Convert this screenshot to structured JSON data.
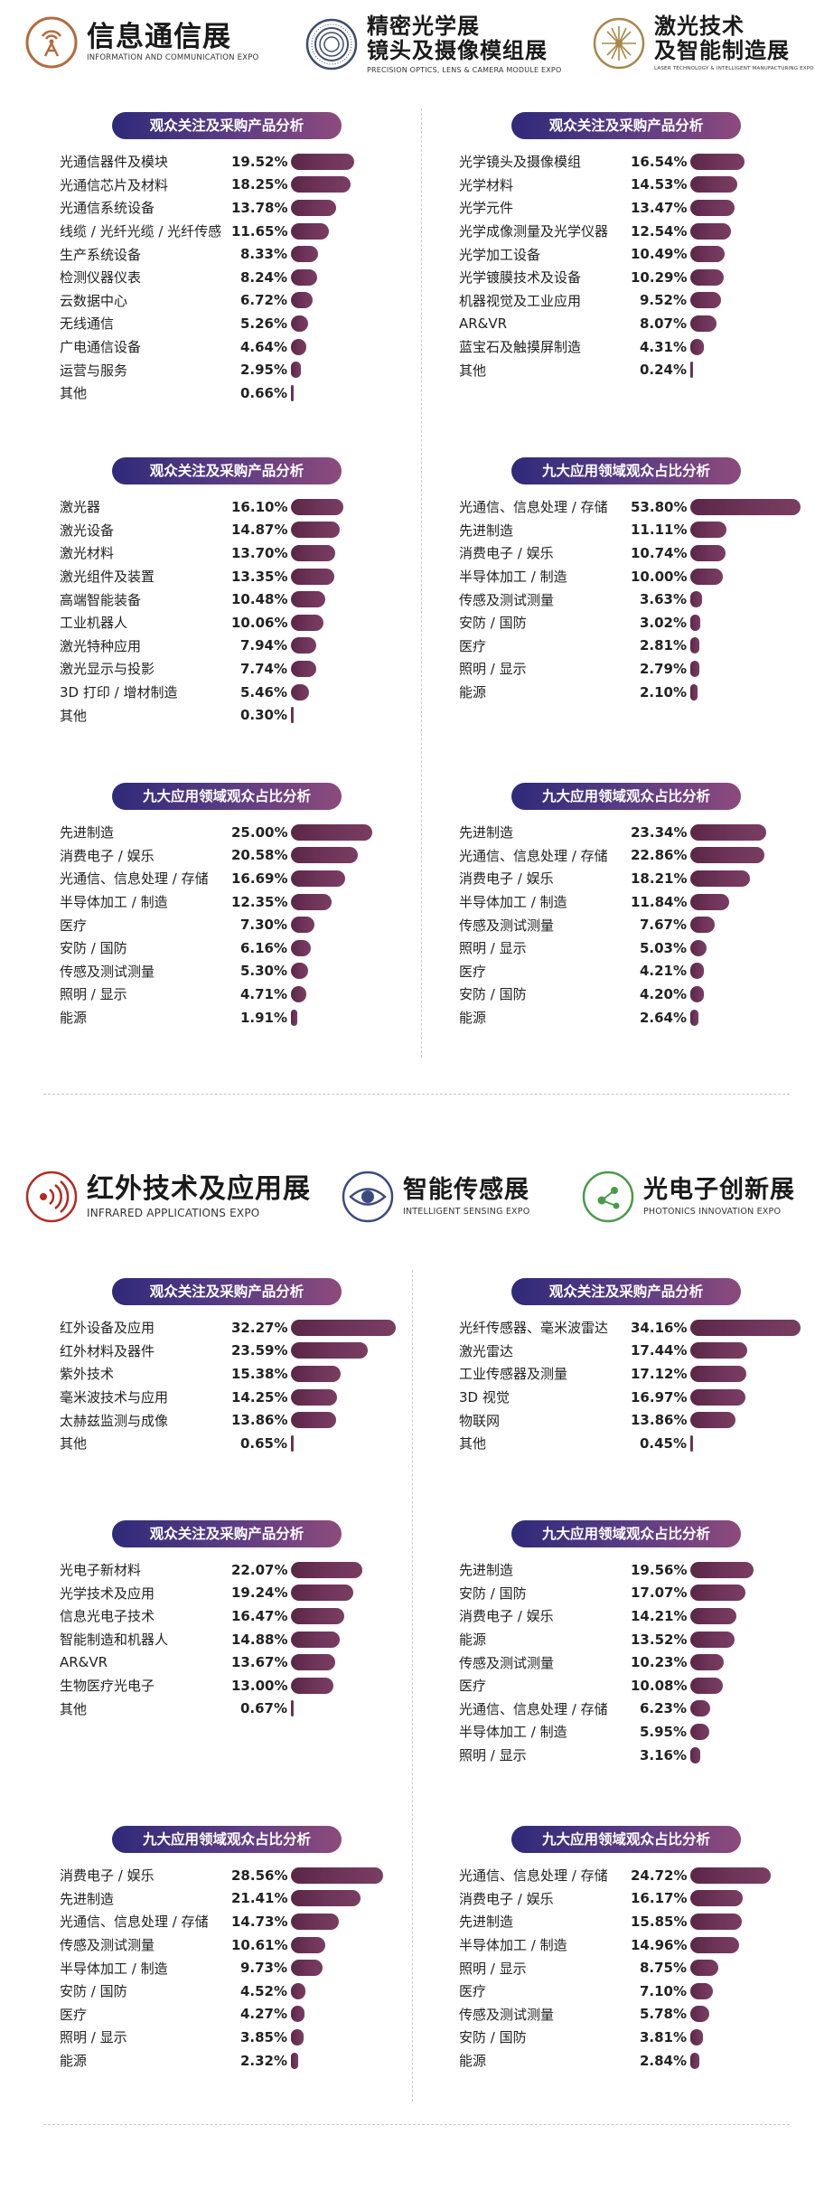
{
  "section1": {
    "expos": [
      {
        "title": "信息通信展",
        "subtitle": "INFORMATION AND COMMUNICATION EXPO",
        "logo": "signal-tower-icon"
      },
      {
        "title_line1": "精密光学展",
        "title_line2": "镜头及摄像模组展",
        "subtitle": "PRECISION OPTICS, LENS & CAMERA MODULE EXPO",
        "logo": "lens-rings-icon"
      },
      {
        "title_line1": "激光技术",
        "title_line2": "及智能制造展",
        "subtitle": "LASER TECHNOLOGY & INTELLIGENT MANUFACTURING EXPO",
        "logo": "laser-burst-icon"
      }
    ]
  },
  "section2": {
    "expos": [
      {
        "title": "红外技术及应用展",
        "subtitle": "INFRARED APPLICATIONS EXPO",
        "logo": "infrared-waves-icon"
      },
      {
        "title": "智能传感展",
        "subtitle": "INTELLIGENT SENSING EXPO",
        "logo": "eye-icon"
      },
      {
        "title": "光电子创新展",
        "subtitle": "PHOTONICS INNOVATION EXPO",
        "logo": "molecule-icon"
      }
    ]
  },
  "chart_data": [
    {
      "type": "bar",
      "title": "观众关注及采购产品分析",
      "categories": [
        "光通信器件及模块",
        "光通信芯片及材料",
        "光通信系统设备",
        "线缆 / 光纤光缆 / 光纤传感",
        "生产系统设备",
        "检测仪器仪表",
        "云数据中心",
        "无线通信",
        "广电通信设备",
        "运营与服务",
        "其他"
      ],
      "values": [
        19.52,
        18.25,
        13.78,
        11.65,
        8.33,
        8.24,
        6.72,
        5.26,
        4.64,
        2.95,
        0.66
      ],
      "labels": [
        "19.52%",
        "18.25%",
        "13.78%",
        "11.65%",
        "8.33%",
        "8.24%",
        "6.72%",
        "5.26%",
        "4.64%",
        "2.95%",
        "0.66%"
      ]
    },
    {
      "type": "bar",
      "title": "观众关注及采购产品分析",
      "categories": [
        "光学镜头及摄像模组",
        "光学材料",
        "光学元件",
        "光学成像测量及光学仪器",
        "光学加工设备",
        "光学镀膜技术及设备",
        "机器视觉及工业应用",
        "AR&VR",
        "蓝宝石及触摸屏制造",
        "其他"
      ],
      "values": [
        16.54,
        14.53,
        13.47,
        12.54,
        10.49,
        10.29,
        9.52,
        8.07,
        4.31,
        0.24
      ],
      "labels": [
        "16.54%",
        "14.53%",
        "13.47%",
        "12.54%",
        "10.49%",
        "10.29%",
        "9.52%",
        "8.07%",
        "4.31%",
        "0.24%"
      ]
    },
    {
      "type": "bar",
      "title": "观众关注及采购产品分析",
      "categories": [
        "激光器",
        "激光设备",
        "激光材料",
        "激光组件及装置",
        "高端智能装备",
        "工业机器人",
        "激光特种应用",
        "激光显示与投影",
        "3D 打印 / 增材制造",
        "其他"
      ],
      "values": [
        16.1,
        14.87,
        13.7,
        13.35,
        10.48,
        10.06,
        7.94,
        7.74,
        5.46,
        0.3
      ],
      "labels": [
        "16.10%",
        "14.87%",
        "13.70%",
        "13.35%",
        "10.48%",
        "10.06%",
        "7.94%",
        "7.74%",
        "5.46%",
        "0.30%"
      ]
    },
    {
      "type": "bar",
      "title": "九大应用领域观众占比分析",
      "categories": [
        "光通信、信息处理 / 存储",
        "先进制造",
        "消费电子 / 娱乐",
        "半导体加工 / 制造",
        "传感及测试测量",
        "安防 / 国防",
        "医疗",
        "照明 / 显示",
        "能源"
      ],
      "values": [
        53.8,
        11.11,
        10.74,
        10.0,
        3.63,
        3.02,
        2.81,
        2.79,
        2.1
      ],
      "labels": [
        "53.80%",
        "11.11%",
        "10.74%",
        "10.00%",
        "3.63%",
        "3.02%",
        "2.81%",
        "2.79%",
        "2.10%"
      ]
    },
    {
      "type": "bar",
      "title": "九大应用领域观众占比分析",
      "categories": [
        "先进制造",
        "消费电子 / 娱乐",
        "光通信、信息处理 / 存储",
        "半导体加工 / 制造",
        "医疗",
        "安防 / 国防",
        "传感及测试测量",
        "照明 / 显示",
        "能源"
      ],
      "values": [
        25.0,
        20.58,
        16.69,
        12.35,
        7.3,
        6.16,
        5.3,
        4.71,
        1.91
      ],
      "labels": [
        "25.00%",
        "20.58%",
        "16.69%",
        "12.35%",
        "7.30%",
        "6.16%",
        "5.30%",
        "4.71%",
        "1.91%"
      ]
    },
    {
      "type": "bar",
      "title": "九大应用领域观众占比分析",
      "categories": [
        "先进制造",
        "光通信、信息处理 / 存储",
        "消费电子 / 娱乐",
        "半导体加工 / 制造",
        "传感及测试测量",
        "照明 / 显示",
        "医疗",
        "安防 / 国防",
        "能源"
      ],
      "values": [
        23.34,
        22.86,
        18.21,
        11.84,
        7.67,
        5.03,
        4.21,
        4.2,
        2.64
      ],
      "labels": [
        "23.34%",
        "22.86%",
        "18.21%",
        "11.84%",
        "7.67%",
        "5.03%",
        "4.21%",
        "4.20%",
        "2.64%"
      ]
    },
    {
      "type": "bar",
      "title": "观众关注及采购产品分析",
      "categories": [
        "红外设备及应用",
        "红外材料及器件",
        "紫外技术",
        "毫米波技术与应用",
        "太赫兹监测与成像",
        "其他"
      ],
      "values": [
        32.27,
        23.59,
        15.38,
        14.25,
        13.86,
        0.65
      ],
      "labels": [
        "32.27%",
        "23.59%",
        "15.38%",
        "14.25%",
        "13.86%",
        "0.65%"
      ]
    },
    {
      "type": "bar",
      "title": "观众关注及采购产品分析",
      "categories": [
        "光纤传感器、毫米波雷达",
        "激光雷达",
        "工业传感器及测量",
        "3D 视觉",
        "物联网",
        "其他"
      ],
      "values": [
        34.16,
        17.44,
        17.12,
        16.97,
        13.86,
        0.45
      ],
      "labels": [
        "34.16%",
        "17.44%",
        "17.12%",
        "16.97%",
        "13.86%",
        "0.45%"
      ]
    },
    {
      "type": "bar",
      "title": "观众关注及采购产品分析",
      "categories": [
        "光电子新材料",
        "光学技术及应用",
        "信息光电子技术",
        "智能制造和机器人",
        "AR&VR",
        "生物医疗光电子",
        "其他"
      ],
      "values": [
        22.07,
        19.24,
        16.47,
        14.88,
        13.67,
        13.0,
        0.67
      ],
      "labels": [
        "22.07%",
        "19.24%",
        "16.47%",
        "14.88%",
        "13.67%",
        "13.00%",
        "0.67%"
      ]
    },
    {
      "type": "bar",
      "title": "九大应用领域观众占比分析",
      "categories": [
        "先进制造",
        "安防 / 国防",
        "消费电子 / 娱乐",
        "能源",
        "传感及测试测量",
        "医疗",
        "光通信、信息处理 / 存储",
        "半导体加工 / 制造",
        "照明 / 显示"
      ],
      "values": [
        19.56,
        17.07,
        14.21,
        13.52,
        10.23,
        10.08,
        6.23,
        5.95,
        3.16
      ],
      "labels": [
        "19.56%",
        "17.07%",
        "14.21%",
        "13.52%",
        "10.23%",
        "10.08%",
        "6.23%",
        "5.95%",
        "3.16%"
      ]
    },
    {
      "type": "bar",
      "title": "九大应用领域观众占比分析",
      "categories": [
        "消费电子 / 娱乐",
        "先进制造",
        "光通信、信息处理 / 存储",
        "传感及测试测量",
        "半导体加工 / 制造",
        "安防 / 国防",
        "医疗",
        "照明 / 显示",
        "能源"
      ],
      "values": [
        28.56,
        21.41,
        14.73,
        10.61,
        9.73,
        4.52,
        4.27,
        3.85,
        2.32
      ],
      "labels": [
        "28.56%",
        "21.41%",
        "14.73%",
        "10.61%",
        "9.73%",
        "4.52%",
        "4.27%",
        "3.85%",
        "2.32%"
      ]
    },
    {
      "type": "bar",
      "title": "九大应用领域观众占比分析",
      "categories": [
        "光通信、信息处理 / 存储",
        "消费电子 / 娱乐",
        "先进制造",
        "半导体加工 / 制造",
        "照明 / 显示",
        "医疗",
        "传感及测试测量",
        "安防 / 国防",
        "能源"
      ],
      "values": [
        24.72,
        16.17,
        15.85,
        14.96,
        8.75,
        7.1,
        5.78,
        3.81,
        2.84
      ],
      "labels": [
        "24.72%",
        "16.17%",
        "15.85%",
        "14.96%",
        "8.75%",
        "7.10%",
        "5.78%",
        "3.81%",
        "2.84%"
      ]
    }
  ]
}
